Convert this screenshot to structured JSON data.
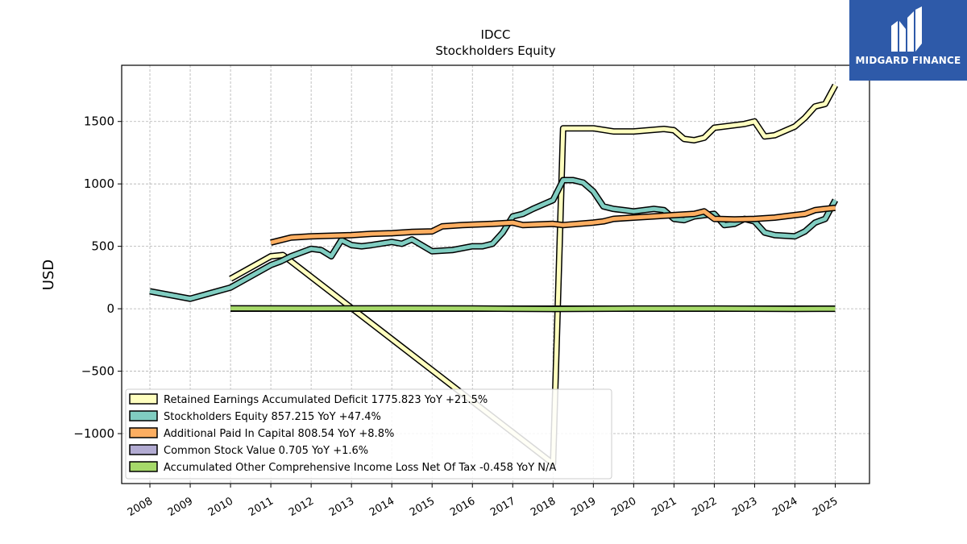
{
  "chart_data": {
    "type": "line",
    "title": "IDCC",
    "subtitle": "Stockholders  Equity",
    "ylabel": "USD",
    "xlabel": "",
    "xlim": [
      2007.3,
      2025.85
    ],
    "ylim": [
      -1400,
      1950
    ],
    "x_ticks": [
      "2008",
      "2009",
      "2010",
      "2011",
      "2012",
      "2013",
      "2014",
      "2015",
      "2016",
      "2017",
      "2018",
      "2019",
      "2020",
      "2021",
      "2022",
      "2023",
      "2024",
      "2025"
    ],
    "y_ticks": [
      1500,
      1000,
      500,
      0,
      -500,
      -1000
    ],
    "y_tick_labels": [
      "1500",
      "1000",
      "500",
      "0",
      "−500",
      "−1000"
    ],
    "grid": true,
    "legend_position": "lower-left",
    "series": [
      {
        "name": "Retained Earnings Accumulated Deficit  1775.823 YoY +21.5%",
        "color": "#ffffbf",
        "x": [
          2010,
          2011,
          2011.3,
          2018,
          2018.25,
          2019,
          2019.5,
          2020,
          2020.75,
          2021,
          2021.25,
          2021.5,
          2021.75,
          2022,
          2022.75,
          2023,
          2023.25,
          2023.5,
          2024,
          2024.25,
          2024.5,
          2024.75,
          2025
        ],
        "y": [
          240,
          420,
          430,
          -1240,
          1445,
          1445,
          1420,
          1420,
          1440,
          1430,
          1360,
          1350,
          1370,
          1450,
          1480,
          1500,
          1380,
          1390,
          1460,
          1530,
          1620,
          1640,
          1790
        ]
      },
      {
        "name": "Stockholders Equity  857.215 YoY +47.4%",
        "color": "#80cdc1",
        "x": [
          2008,
          2009,
          2010,
          2011,
          2011.25,
          2011.5,
          2012,
          2012.25,
          2012.5,
          2012.75,
          2013,
          2013.25,
          2013.5,
          2014,
          2014.25,
          2014.5,
          2015,
          2015.5,
          2016,
          2016.25,
          2016.5,
          2016.75,
          2017,
          2017.25,
          2017.5,
          2018,
          2018.25,
          2018.5,
          2018.75,
          2019,
          2019.25,
          2019.5,
          2019.75,
          2020,
          2020.5,
          2020.75,
          2021,
          2021.25,
          2021.5,
          2022,
          2022.25,
          2022.5,
          2022.75,
          2023,
          2023.25,
          2023.5,
          2024,
          2024.25,
          2024.5,
          2024.75,
          2025
        ],
        "y": [
          140,
          80,
          170,
          350,
          380,
          420,
          480,
          470,
          420,
          550,
          510,
          500,
          510,
          535,
          520,
          555,
          460,
          470,
          500,
          500,
          520,
          610,
          740,
          760,
          800,
          870,
          1030,
          1030,
          1010,
          940,
          820,
          800,
          790,
          780,
          800,
          790,
          720,
          710,
          740,
          760,
          670,
          680,
          720,
          700,
          610,
          590,
          580,
          620,
          690,
          720,
          870
        ]
      },
      {
        "name": "Additional Paid In Capital  808.54 YoY +8.8%",
        "color": "#fdae61",
        "x": [
          2011,
          2011.5,
          2012,
          2013,
          2013.5,
          2014,
          2014.5,
          2015,
          2015.25,
          2015.75,
          2016.5,
          2017,
          2017.25,
          2018,
          2018.25,
          2019,
          2019.25,
          2019.5,
          2020,
          2020.5,
          2021,
          2021.5,
          2021.75,
          2022,
          2022.5,
          2023,
          2023.5,
          2024,
          2024.25,
          2024.5,
          2024.75,
          2025
        ],
        "y": [
          530,
          570,
          580,
          590,
          600,
          605,
          615,
          620,
          660,
          670,
          680,
          690,
          670,
          680,
          670,
          690,
          700,
          720,
          730,
          740,
          750,
          760,
          780,
          720,
          715,
          720,
          730,
          750,
          760,
          790,
          800,
          808
        ]
      },
      {
        "name": "Common Stock Value  0.705 YoY +1.6%",
        "color": "#b2abd2",
        "x": [
          2010,
          2013,
          2016,
          2019,
          2022,
          2025
        ],
        "y": [
          0.6,
          0.6,
          0.7,
          0.7,
          0.7,
          0.7
        ]
      },
      {
        "name": "Accumulated Other Comprehensive Income Loss Net Of Tax  -0.458 YoY N/A",
        "color": "#a6d96a",
        "x": [
          2010,
          2012,
          2014,
          2016,
          2018,
          2020,
          2022,
          2024,
          2025
        ],
        "y": [
          3,
          2,
          3,
          2,
          -2,
          1,
          1,
          -1,
          0
        ]
      }
    ]
  },
  "logo": {
    "text": "MIDGARD FINANCE"
  }
}
